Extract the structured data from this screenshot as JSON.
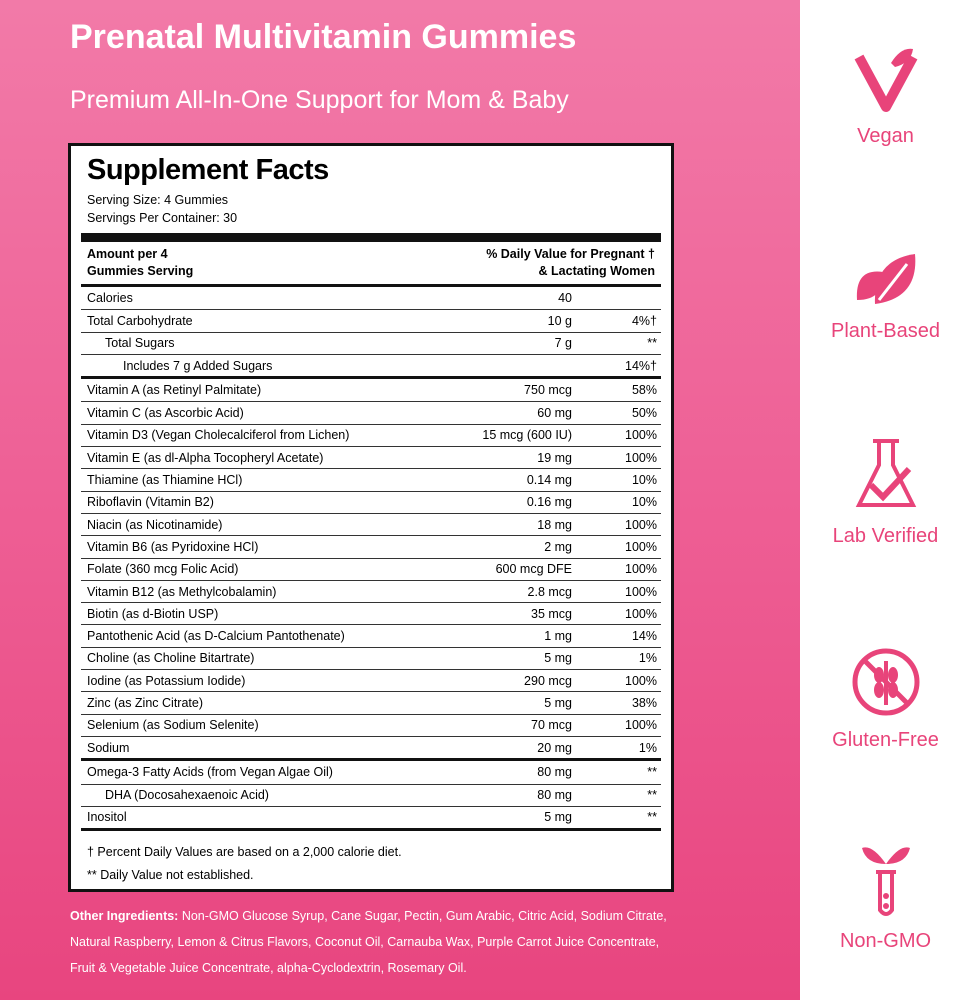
{
  "header": {
    "title": "Prenatal Multivitamin Gummies",
    "subtitle": "Premium All-In-One Support for Mom & Baby"
  },
  "facts": {
    "title": "Supplement Facts",
    "serving_size": "Serving Size: 4 Gummies",
    "servings_per_container": "Servings Per Container: 30",
    "amount_header": [
      "Amount per 4",
      "Gummies Serving"
    ],
    "dv_header": [
      "% Daily Value for Pregnant †",
      "& Lactating Women"
    ],
    "sections": [
      [
        {
          "name": "Calories",
          "amount": "40"
        },
        {
          "name": "Total Carbohydrate",
          "amount": "10 g",
          "dv": "4%†",
          "sub_rows": [
            {
              "name": "Total Sugars",
              "amount": "7 g",
              "dv": "**",
              "sub_rows": [
                {
                  "name": "Includes 7 g Added Sugars",
                  "dv": "14%†"
                }
              ]
            }
          ]
        }
      ],
      [
        {
          "name": "Vitamin A (as Retinyl Palmitate)",
          "amount": "750 mcg",
          "dv": "58%"
        },
        {
          "name": "Vitamin C (as Ascorbic Acid)",
          "amount": "60 mg",
          "dv": "50%"
        },
        {
          "name": "Vitamin D3 (Vegan Cholecalciferol from Lichen)",
          "amount": "15 mcg (600 IU)",
          "dv": "100%"
        },
        {
          "name": "Vitamin E (as dl-Alpha Tocopheryl Acetate)",
          "amount": "19 mg",
          "dv": "100%"
        },
        {
          "name": "Thiamine (as Thiamine HCl)",
          "amount": "0.14 mg",
          "dv": "10%"
        },
        {
          "name": "Riboflavin (Vitamin B2)",
          "amount": "0.16 mg",
          "dv": "10%"
        },
        {
          "name": "Niacin (as Nicotinamide)",
          "amount": "18 mg",
          "dv": "100%"
        },
        {
          "name": "Vitamin B6 (as Pyridoxine HCl)",
          "amount": "2 mg",
          "dv": "100%"
        },
        {
          "name": "Folate (360 mcg Folic Acid)",
          "amount": "600 mcg DFE",
          "dv": "100%"
        },
        {
          "name": "Vitamin B12 (as Methylcobalamin)",
          "amount": "2.8 mcg",
          "dv": "100%"
        },
        {
          "name": "Biotin (as d-Biotin USP)",
          "amount": "35 mcg",
          "dv": "100%"
        },
        {
          "name": "Pantothenic Acid (as D-Calcium Pantothenate)",
          "amount": "1 mg",
          "dv": "14%"
        },
        {
          "name": "Choline (as Choline Bitartrate)",
          "amount": "5 mg",
          "dv": "1%"
        },
        {
          "name": "Iodine (as Potassium Iodide)",
          "amount": "290 mcg",
          "dv": "100%"
        },
        {
          "name": "Zinc (as Zinc Citrate)",
          "amount": "5 mg",
          "dv": "38%"
        },
        {
          "name": "Selenium (as Sodium Selenite)",
          "amount": "70 mcg",
          "dv": "100%"
        },
        {
          "name": "Sodium",
          "amount": "20 mg",
          "dv": "1%"
        }
      ],
      [
        {
          "name": "Omega-3 Fatty Acids (from Vegan Algae Oil)",
          "amount": "80 mg",
          "dv": "**",
          "sub_rows": [
            {
              "name": "DHA (Docosahexaenoic Acid)",
              "amount": "80 mg",
              "dv": "**"
            }
          ]
        },
        {
          "name": "Inositol",
          "amount": "5 mg",
          "dv": "**"
        }
      ]
    ],
    "footnotes": [
      "† Percent Daily Values are based on a 2,000 calorie diet.",
      "** Daily Value not established."
    ]
  },
  "other_ingredients": {
    "label": "Other Ingredients:",
    "text": "Non-GMO Glucose Syrup, Cane Sugar, Pectin, Gum Arabic, Citric Acid, Sodium Citrate, Natural Raspberry, Lemon & Citrus Flavors, Coconut Oil, Carnauba Wax, Purple Carrot Juice Concentrate, Fruit & Vegetable Juice Concentrate, alpha-Cyclodextrin, Rosemary Oil."
  },
  "badges": [
    "Vegan",
    "Plant-Based",
    "Lab Verified",
    "Gluten-Free",
    "Non-GMO"
  ]
}
